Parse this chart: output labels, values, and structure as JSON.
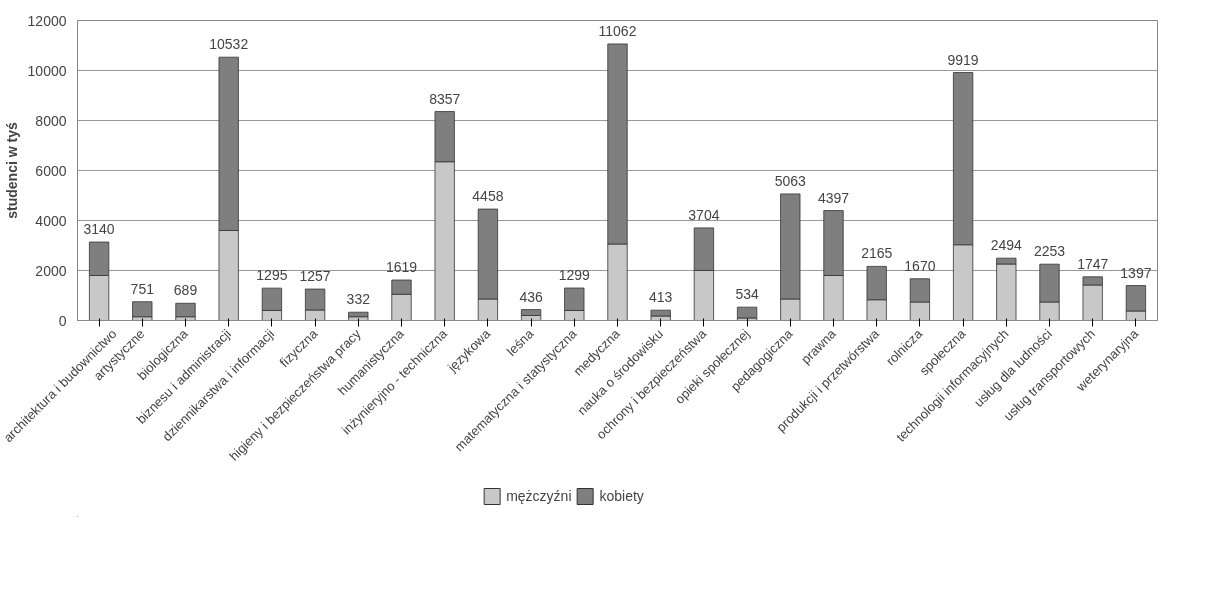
{
  "chart_data": {
    "type": "bar",
    "stacked": true,
    "ylabel": "studenci w tyś",
    "categories": [
      "architektura i budownictwo",
      "artystyczne",
      "biologiczna",
      "biznesu i administracji",
      "dziennikarstwa i informacji",
      "fizyczna",
      "higieny i bezpieczeństwa pracy",
      "humanistyczna",
      "inżynieryjno - techniczna",
      "językowa",
      "leśna",
      "matematyczna i statystyczna",
      "medyczna",
      "nauka o środowisku",
      "ochrony i bezpieczeństwa",
      "opieki społecznej",
      "pedagogiczna",
      "prawna",
      "produkcji i przetwórstwa",
      "rolnicza",
      "społeczna",
      "technologii informacyjnych",
      "usług dla ludności",
      "usług transportowych",
      "weterynaryjna"
    ],
    "series": [
      {
        "name": "mężczyźni",
        "color": "#c8c8c8",
        "values": [
          1800,
          150,
          150,
          3600,
          400,
          420,
          150,
          1050,
          6350,
          860,
          200,
          400,
          3060,
          180,
          2000,
          100,
          860,
          1800,
          830,
          740,
          3030,
          2260,
          740,
          1420,
          380
        ]
      },
      {
        "name": "kobiety",
        "color": "#7f7f7f",
        "values": [
          1340,
          601,
          539,
          6932,
          895,
          837,
          182,
          569,
          2007,
          3598,
          236,
          899,
          8002,
          233,
          1704,
          434,
          4203,
          2597,
          1335,
          930,
          6889,
          234,
          1513,
          327,
          1017
        ]
      }
    ],
    "totals": [
      "3140",
      "751",
      "689",
      "10532",
      "1295",
      "1257",
      "332",
      "1619",
      "8357",
      "4458",
      "436",
      "1299",
      "11062",
      "413",
      "3704",
      "534",
      "5063",
      "4397",
      "2165",
      "1670",
      "9919",
      "2494",
      "2253",
      "1747",
      "1397"
    ],
    "ylim": [
      0,
      12000
    ],
    "yticks": [
      0,
      2000,
      4000,
      6000,
      8000,
      10000,
      12000
    ],
    "grid": "y",
    "legend": "bottom"
  }
}
